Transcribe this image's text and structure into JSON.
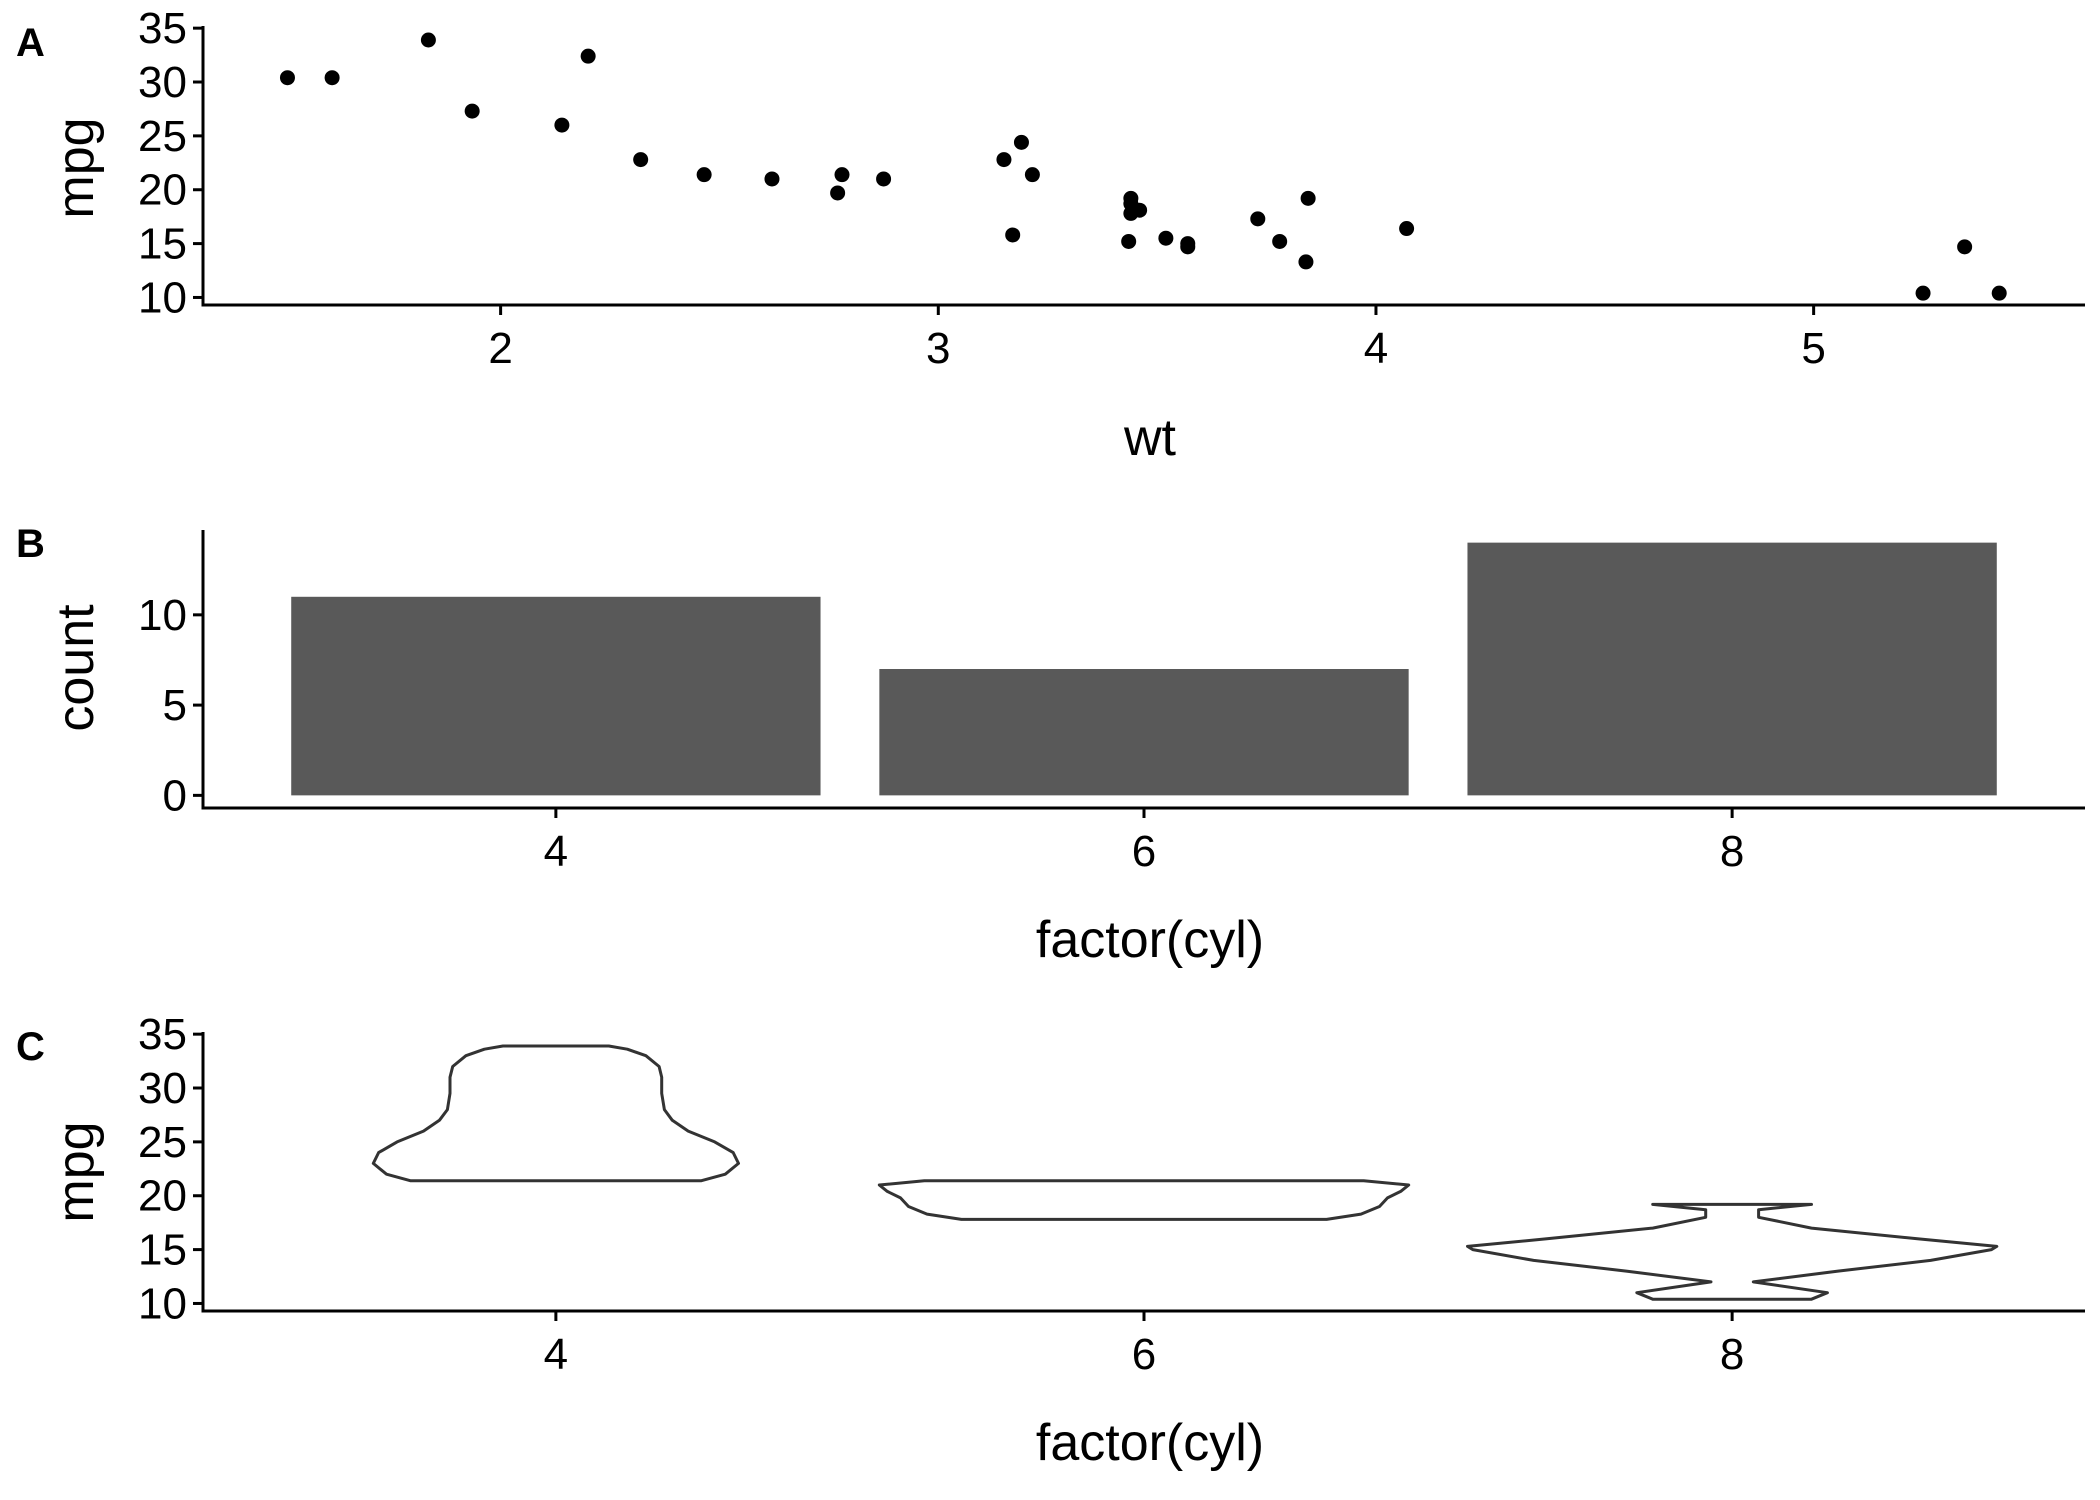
{
  "chart_data": [
    {
      "tag": "A",
      "type": "scatter",
      "xlabel": "wt",
      "ylabel": "mpg",
      "xlim": [
        1.32,
        5.62
      ],
      "ylim": [
        9.3,
        35.2
      ],
      "xticks": [
        2,
        3,
        4,
        5
      ],
      "yticks": [
        10,
        15,
        20,
        25,
        30,
        35
      ],
      "grid": false,
      "legend": "none",
      "point_color": "#000000",
      "points": [
        [
          1.513,
          30.4
        ],
        [
          1.615,
          30.4
        ],
        [
          1.835,
          33.9
        ],
        [
          1.935,
          27.3
        ],
        [
          2.14,
          26.0
        ],
        [
          2.2,
          32.4
        ],
        [
          2.32,
          22.8
        ],
        [
          2.465,
          21.4
        ],
        [
          2.62,
          21.0
        ],
        [
          2.77,
          19.7
        ],
        [
          2.78,
          21.4
        ],
        [
          2.875,
          21.0
        ],
        [
          3.15,
          22.8
        ],
        [
          3.17,
          15.8
        ],
        [
          3.19,
          24.4
        ],
        [
          3.215,
          21.4
        ],
        [
          3.435,
          15.2
        ],
        [
          3.44,
          18.7
        ],
        [
          3.44,
          17.8
        ],
        [
          3.44,
          19.2
        ],
        [
          3.46,
          18.1
        ],
        [
          3.52,
          15.5
        ],
        [
          3.57,
          14.7
        ],
        [
          3.57,
          15.0
        ],
        [
          3.73,
          17.3
        ],
        [
          3.78,
          15.2
        ],
        [
          3.84,
          13.3
        ],
        [
          3.845,
          19.2
        ],
        [
          4.07,
          16.4
        ],
        [
          5.25,
          10.4
        ],
        [
          5.345,
          14.7
        ],
        [
          5.424,
          10.4
        ]
      ]
    },
    {
      "tag": "B",
      "type": "bar",
      "xlabel": "factor(cyl)",
      "ylabel": "count",
      "categories": [
        "4",
        "6",
        "8"
      ],
      "values": [
        11,
        7,
        14
      ],
      "ylim": [
        -0.7,
        14.7
      ],
      "yticks": [
        0,
        5,
        10
      ],
      "grid": false,
      "legend": "none",
      "bar_color": "#595959"
    },
    {
      "tag": "C",
      "type": "violin",
      "xlabel": "factor(cyl)",
      "ylabel": "mpg",
      "categories": [
        "4",
        "6",
        "8"
      ],
      "ylim": [
        9.3,
        35.2
      ],
      "yticks": [
        10,
        15,
        20,
        25,
        30,
        35
      ],
      "grid": false,
      "legend": "none",
      "outline_color": "#333333",
      "violins": [
        {
          "category": "4",
          "profile": [
            [
              21.4,
              0.55
            ],
            [
              22.0,
              0.64
            ],
            [
              23.0,
              0.69
            ],
            [
              24.0,
              0.67
            ],
            [
              25.0,
              0.6
            ],
            [
              26.0,
              0.5
            ],
            [
              27.0,
              0.44
            ],
            [
              28.0,
              0.41
            ],
            [
              29.5,
              0.4
            ],
            [
              31.0,
              0.4
            ],
            [
              32.0,
              0.39
            ],
            [
              33.0,
              0.34
            ],
            [
              33.6,
              0.27
            ],
            [
              33.9,
              0.2
            ]
          ]
        },
        {
          "category": "6",
          "profile": [
            [
              17.8,
              0.69
            ],
            [
              18.3,
              0.82
            ],
            [
              19.0,
              0.89
            ],
            [
              19.8,
              0.92
            ],
            [
              20.4,
              0.97
            ],
            [
              21.0,
              1.0
            ],
            [
              21.4,
              0.83
            ]
          ]
        },
        {
          "category": "8",
          "profile": [
            [
              10.4,
              0.3
            ],
            [
              11.0,
              0.36
            ],
            [
              12.0,
              0.08
            ],
            [
              13.0,
              0.4
            ],
            [
              14.0,
              0.75
            ],
            [
              15.0,
              0.98
            ],
            [
              15.3,
              1.0
            ],
            [
              16.0,
              0.7
            ],
            [
              17.0,
              0.3
            ],
            [
              18.0,
              0.1
            ],
            [
              18.7,
              0.1
            ],
            [
              19.2,
              0.3
            ]
          ]
        }
      ]
    }
  ]
}
